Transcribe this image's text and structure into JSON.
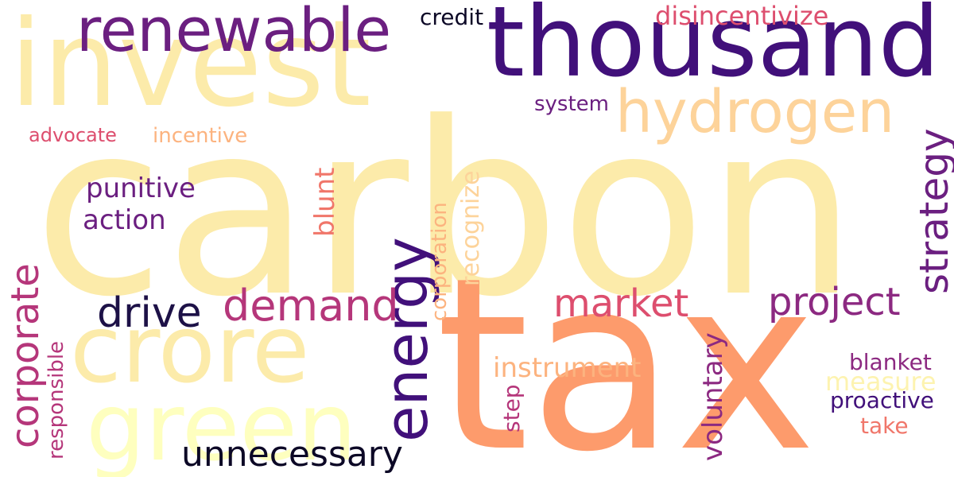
{
  "words": {
    "carbon": "carbon",
    "tax": "tax",
    "invest": "invest",
    "thousand": "thousand",
    "renewable": "renewable",
    "hydrogen": "hydrogen",
    "crore": "crore",
    "green": "green",
    "energy": "energy",
    "corporate": "corporate",
    "drive": "drive",
    "demand": "demand",
    "market": "market",
    "project": "project",
    "strategy": "strategy",
    "unnecessary": "unnecessary",
    "punitive": "punitive",
    "action": "action",
    "credit": "credit",
    "disincentivize": "disincentivize",
    "system": "system",
    "advocate": "advocate",
    "incentive": "incentive",
    "blunt": "blunt",
    "recognize": "recognize",
    "corporation": "corporation",
    "voluntary": "voluntary",
    "instrument": "instrument",
    "measure": "measure",
    "blanket": "blanket",
    "proactive": "proactive",
    "take": "take",
    "step": "step",
    "responsible": "responsible"
  },
  "palette": {
    "background": "#ffffff",
    "cream": "#fcebaa",
    "pale": "#fdf3b0",
    "yellow": "#feffbf",
    "tan": "#fdd39a",
    "peach": "#fcb37f",
    "salmon": "#fd9b6c",
    "coral": "#f0766a",
    "rose": "#dd4e6e",
    "magenta": "#b5367a",
    "plum": "#8c2981",
    "violet": "#6b1f80",
    "indigo": "#41107a",
    "night": "#1d1147",
    "black": "#0c0826"
  }
}
